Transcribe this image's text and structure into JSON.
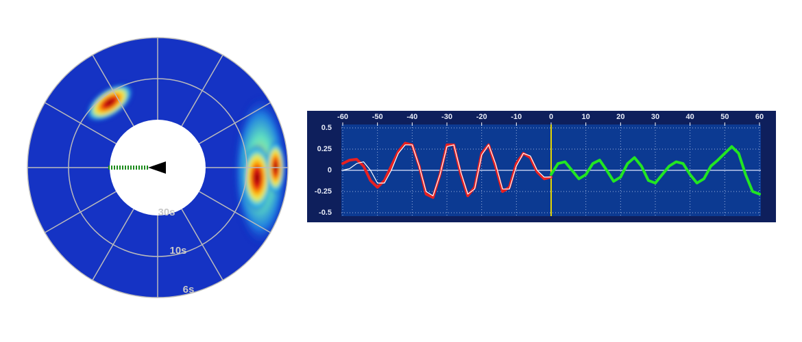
{
  "chart_data": [
    {
      "type": "polar",
      "ring_labels": [
        "30s",
        "10s",
        "6s"
      ]
    },
    {
      "type": "line",
      "xlim": [
        -60,
        60
      ],
      "xticks": [
        -60,
        -50,
        -40,
        -30,
        -20,
        -10,
        0,
        10,
        20,
        30,
        40,
        50,
        60
      ],
      "ylim": [
        -0.5,
        0.5
      ],
      "yticks": [
        0.5,
        0.25,
        0,
        -0.25,
        -0.5
      ],
      "grid": true,
      "vline": 0,
      "vline_color": "#e8d800",
      "series": [
        {
          "color": "#e82020",
          "width": 4,
          "x": [
            -60,
            -58,
            -56,
            -54,
            -52,
            -50,
            -48,
            -46,
            -44,
            -42,
            -40,
            -38,
            -36,
            -34,
            -32,
            -30,
            -28,
            -26,
            -24,
            -22,
            -20,
            -18,
            -16,
            -14,
            -12,
            -10,
            -8,
            -6,
            -4,
            -2,
            0
          ],
          "values": [
            0.08,
            0.12,
            0.13,
            0.05,
            -0.12,
            -0.2,
            -0.12,
            0.05,
            0.22,
            0.32,
            0.3,
            0.05,
            -0.28,
            -0.32,
            -0.05,
            0.3,
            0.3,
            -0.05,
            -0.3,
            -0.2,
            0.2,
            0.3,
            0.05,
            -0.25,
            -0.2,
            0.08,
            0.2,
            0.15,
            -0.02,
            -0.1,
            -0.08
          ]
        },
        {
          "color": "#ffffff",
          "width": 1.2,
          "x": [
            -60,
            -58,
            -56,
            -54,
            -52,
            -50,
            -48,
            -46,
            -44,
            -42,
            -40,
            -38,
            -36,
            -34,
            -32,
            -30,
            -28,
            -26,
            -24,
            -22,
            -20,
            -18,
            -16,
            -14,
            -12,
            -10,
            -8,
            -6,
            -4,
            -2,
            0
          ],
          "values": [
            0,
            0.02,
            0.08,
            0.1,
            0,
            -0.15,
            -0.15,
            0,
            0.2,
            0.3,
            0.3,
            0.05,
            -0.25,
            -0.3,
            -0.05,
            0.28,
            0.3,
            -0.02,
            -0.28,
            -0.22,
            0.18,
            0.3,
            0.08,
            -0.22,
            -0.22,
            0.05,
            0.2,
            0.17,
            0,
            -0.08,
            -0.08
          ]
        },
        {
          "color": "#22e622",
          "width": 4,
          "x": [
            0,
            2,
            4,
            6,
            8,
            10,
            12,
            14,
            16,
            18,
            20,
            22,
            24,
            26,
            28,
            30,
            32,
            34,
            36,
            38,
            40,
            42,
            44,
            46,
            48,
            50,
            52,
            54,
            56,
            58,
            60
          ],
          "values": [
            -0.05,
            0.08,
            0.1,
            0,
            -0.1,
            -0.05,
            0.08,
            0.12,
            0,
            -0.13,
            -0.08,
            0.08,
            0.15,
            0.05,
            -0.12,
            -0.15,
            -0.05,
            0.05,
            0.1,
            0.08,
            -0.05,
            -0.15,
            -0.1,
            0.05,
            0.12,
            0.2,
            0.28,
            0.2,
            -0.05,
            -0.25,
            -0.28
          ]
        }
      ]
    }
  ]
}
